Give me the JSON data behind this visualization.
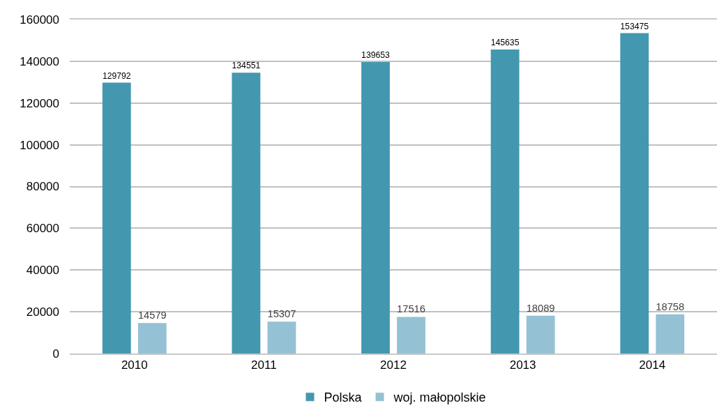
{
  "chart_data": {
    "type": "bar",
    "categories": [
      "2010",
      "2011",
      "2012",
      "2013",
      "2014"
    ],
    "series": [
      {
        "name": "Polska",
        "color": "#4398b0",
        "values": [
          129792,
          134551,
          139653,
          145635,
          153475
        ]
      },
      {
        "name": "woj. małopolskie",
        "color": "#94c2d4",
        "values": [
          14579,
          15307,
          17516,
          18089,
          18758
        ]
      }
    ],
    "ylim": [
      0,
      160000
    ],
    "yticks": [
      0,
      20000,
      40000,
      60000,
      80000,
      100000,
      120000,
      140000,
      160000
    ],
    "grid": "y",
    "legend": "bottom",
    "data_labels": true
  }
}
